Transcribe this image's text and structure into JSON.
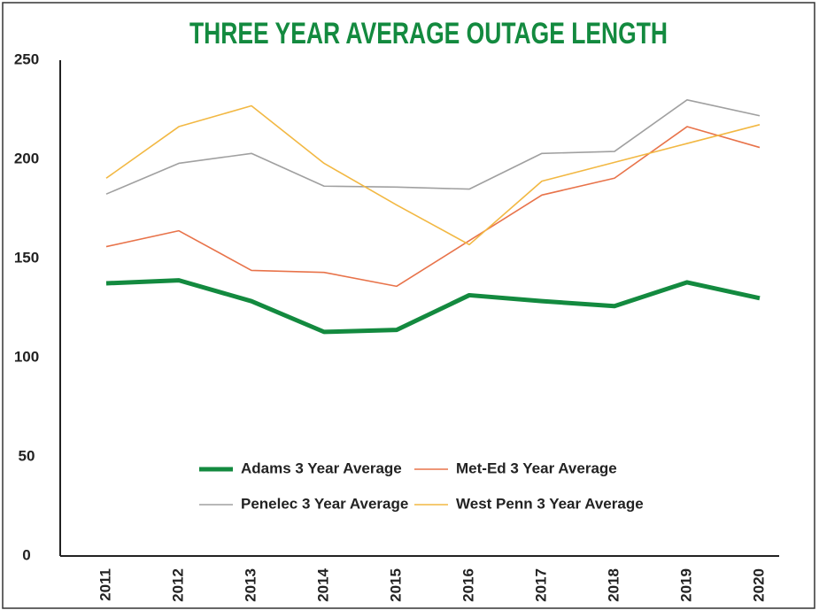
{
  "chart_data": {
    "type": "line",
    "title": "THREE YEAR AVERAGE OUTAGE LENGTH",
    "categories": [
      "2011",
      "2012",
      "2013",
      "2014",
      "2015",
      "2016",
      "2017",
      "2018",
      "2019",
      "2020"
    ],
    "series": [
      {
        "name": "Adams 3 Year Average",
        "color": "#138a3f",
        "width": 5,
        "values": [
          137.5,
          139,
          128.5,
          113,
          114,
          131.5,
          128.5,
          126,
          138,
          130
        ]
      },
      {
        "name": "Met-Ed 3 Year Average",
        "color": "#e8734a",
        "width": 1.6,
        "values": [
          156,
          164,
          144,
          143,
          136,
          159,
          182,
          190.5,
          216.5,
          206
        ]
      },
      {
        "name": "Penelec 3 Year Average",
        "color": "#a0a0a0",
        "width": 1.6,
        "values": [
          182.5,
          198,
          203,
          186.5,
          186,
          185,
          203,
          204,
          230,
          222
        ]
      },
      {
        "name": "West Penn 3 Year Average",
        "color": "#f2b843",
        "width": 1.6,
        "values": [
          190.5,
          216.5,
          227,
          198,
          177,
          157,
          189,
          198.5,
          208,
          217.5
        ]
      }
    ],
    "ylim": [
      0,
      250
    ],
    "yticks": [
      0,
      50,
      100,
      150,
      200,
      250
    ],
    "grid": false
  }
}
